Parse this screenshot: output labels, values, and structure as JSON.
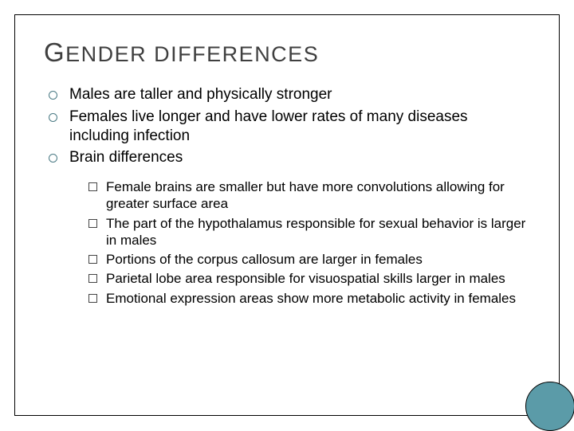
{
  "title_html": "<span class='cap'>G</span>ENDER DIFFERENCES",
  "bullets": [
    {
      "text": "Males are taller and physically stronger"
    },
    {
      "text": "Females live longer and have lower rates of many diseases including infection"
    },
    {
      "text": "Brain differences",
      "children": [
        "Female brains are smaller but have more convolutions allowing for greater surface area",
        "The part of the hypothalamus responsible for sexual behavior is larger in males",
        "Portions of the corpus callosum are larger in females",
        "Parietal lobe area responsible for visuospatial skills larger in males",
        "Emotional expression areas show more metabolic activity in females"
      ]
    }
  ],
  "colors": {
    "title": "#3f3f3f",
    "bullet_ring": "#4a7a84",
    "subbullet_box": "#444444",
    "accent_circle": "#5b9ba8",
    "border": "#000000",
    "background": "#ffffff"
  },
  "typography": {
    "title_fontsize": 27,
    "title_cap_fontsize": 33,
    "level1_fontsize": 19,
    "level2_fontsize": 17,
    "font_family": "Arial"
  },
  "layout": {
    "slide_width": 720,
    "slide_height": 540,
    "outer_margin": 18,
    "accent_circle_diameter": 62
  }
}
